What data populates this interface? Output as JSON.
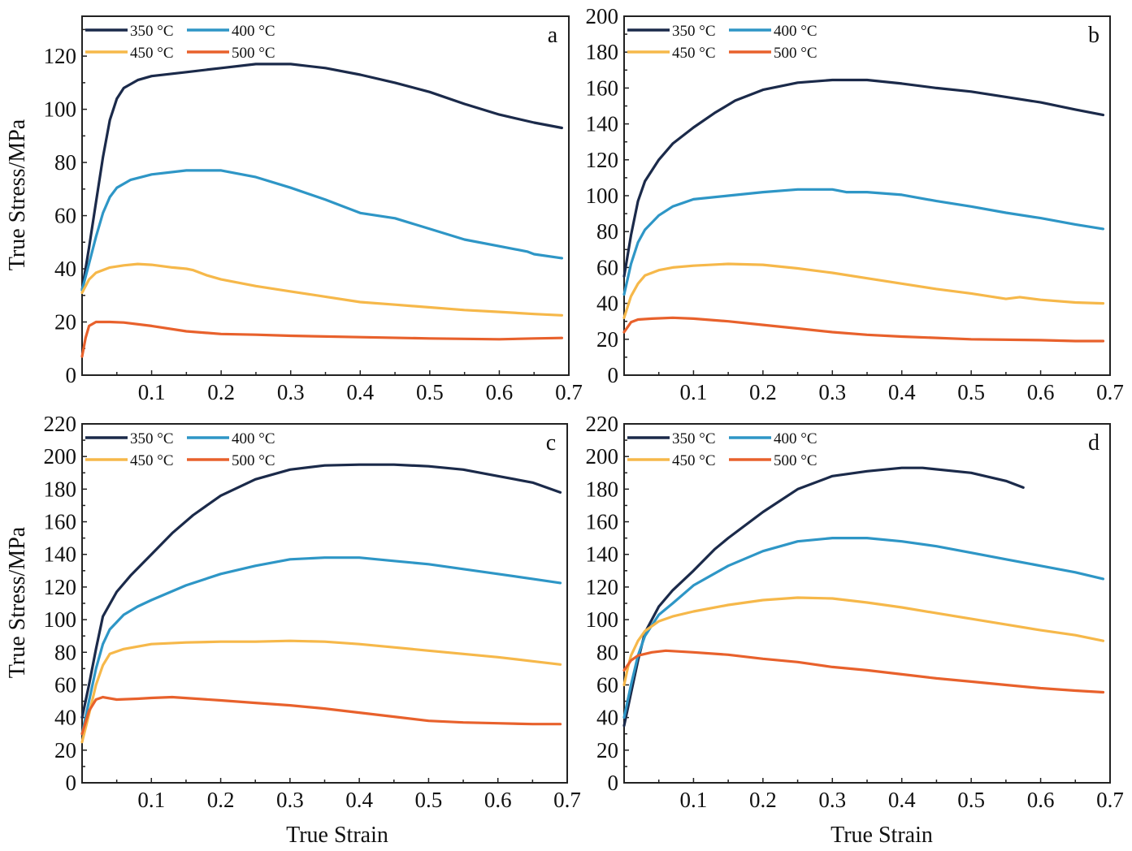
{
  "figure": {
    "x_axis_title": "True Strain",
    "y_axis_title": "True Stress/MPa"
  },
  "legend": [
    {
      "label": "350 °C",
      "color": "#1b2a4a"
    },
    {
      "label": "400 °C",
      "color": "#2e96c6"
    },
    {
      "label": "450 °C",
      "color": "#f6b84a"
    },
    {
      "label": "500 °C",
      "color": "#e8612c"
    }
  ],
  "chart_data": [
    {
      "type": "line",
      "panel": "a",
      "title": "",
      "xlabel": "",
      "ylabel": "True Stress/MPa",
      "xlim": [
        0,
        0.7
      ],
      "ylim": [
        0,
        135
      ],
      "xticks": [
        "0.1",
        "0.2",
        "0.3",
        "0.4",
        "0.5",
        "0.6",
        "0.7"
      ],
      "yticks": [
        "0",
        "20",
        "40",
        "60",
        "80",
        "100",
        "120"
      ],
      "legend_position": "top-left",
      "grid": false,
      "series": [
        {
          "name": "350 °C",
          "x": [
            0,
            0.01,
            0.02,
            0.03,
            0.04,
            0.05,
            0.06,
            0.08,
            0.1,
            0.15,
            0.2,
            0.25,
            0.3,
            0.35,
            0.4,
            0.45,
            0.5,
            0.55,
            0.6,
            0.65,
            0.69
          ],
          "y": [
            32,
            48,
            65,
            82,
            96,
            104,
            108,
            111,
            112.5,
            114,
            115.5,
            117,
            117,
            115.5,
            113,
            110,
            106.5,
            102,
            98,
            95,
            93
          ]
        },
        {
          "name": "400 °C",
          "x": [
            0,
            0.01,
            0.02,
            0.03,
            0.04,
            0.05,
            0.07,
            0.1,
            0.15,
            0.2,
            0.25,
            0.3,
            0.35,
            0.4,
            0.45,
            0.5,
            0.55,
            0.6,
            0.64,
            0.65,
            0.69
          ],
          "y": [
            32,
            42,
            52,
            61,
            67,
            70.5,
            73.5,
            75.5,
            77,
            77,
            74.5,
            70.5,
            66,
            61,
            59,
            55,
            51,
            48.5,
            46.5,
            45.5,
            44
          ]
        },
        {
          "name": "450 °C",
          "x": [
            0,
            0.01,
            0.02,
            0.04,
            0.06,
            0.08,
            0.1,
            0.13,
            0.15,
            0.16,
            0.18,
            0.2,
            0.25,
            0.3,
            0.35,
            0.4,
            0.45,
            0.5,
            0.55,
            0.6,
            0.65,
            0.69
          ],
          "y": [
            31,
            36,
            38.5,
            40.5,
            41.3,
            41.8,
            41.5,
            40.5,
            40,
            39.5,
            37.5,
            36,
            33.5,
            31.5,
            29.5,
            27.5,
            26.5,
            25.5,
            24.5,
            23.8,
            23,
            22.5
          ]
        },
        {
          "name": "500 °C",
          "x": [
            0,
            0.005,
            0.01,
            0.02,
            0.04,
            0.06,
            0.1,
            0.15,
            0.2,
            0.25,
            0.3,
            0.4,
            0.5,
            0.6,
            0.65,
            0.69
          ],
          "y": [
            7,
            14,
            18.5,
            20,
            20,
            19.8,
            18.5,
            16.5,
            15.5,
            15.2,
            14.8,
            14.3,
            13.8,
            13.5,
            13.8,
            14
          ]
        }
      ]
    },
    {
      "type": "line",
      "panel": "b",
      "title": "",
      "xlabel": "",
      "ylabel": "",
      "xlim": [
        0,
        0.7
      ],
      "ylim": [
        0,
        200
      ],
      "xticks": [
        "0.1",
        "0.2",
        "0.3",
        "0.4",
        "0.5",
        "0.6",
        "0.7"
      ],
      "yticks": [
        "0",
        "20",
        "40",
        "60",
        "80",
        "100",
        "120",
        "140",
        "160",
        "180",
        "200"
      ],
      "legend_position": "top-left",
      "grid": false,
      "series": [
        {
          "name": "350 °C",
          "x": [
            0,
            0.01,
            0.02,
            0.03,
            0.05,
            0.07,
            0.1,
            0.13,
            0.16,
            0.2,
            0.25,
            0.3,
            0.35,
            0.4,
            0.45,
            0.5,
            0.55,
            0.6,
            0.65,
            0.69
          ],
          "y": [
            55,
            78,
            97,
            108,
            120,
            129,
            138,
            146,
            153,
            159,
            163,
            164.5,
            164.5,
            162.5,
            160,
            158,
            155,
            152,
            148,
            145
          ]
        },
        {
          "name": "400 °C",
          "x": [
            0,
            0.01,
            0.02,
            0.03,
            0.05,
            0.07,
            0.1,
            0.15,
            0.2,
            0.25,
            0.3,
            0.32,
            0.35,
            0.4,
            0.45,
            0.5,
            0.55,
            0.6,
            0.65,
            0.69
          ],
          "y": [
            45,
            62,
            74,
            81,
            89,
            94,
            98,
            100,
            102,
            103.5,
            103.5,
            102,
            102,
            100.5,
            97,
            94,
            90.5,
            87.5,
            84,
            81.5
          ]
        },
        {
          "name": "450 °C",
          "x": [
            0,
            0.01,
            0.02,
            0.03,
            0.05,
            0.07,
            0.1,
            0.15,
            0.2,
            0.25,
            0.3,
            0.35,
            0.4,
            0.45,
            0.5,
            0.55,
            0.57,
            0.6,
            0.65,
            0.69
          ],
          "y": [
            32,
            44,
            51,
            55.5,
            58.5,
            60,
            61,
            62,
            61.5,
            59.5,
            57,
            54,
            51,
            48,
            45.5,
            42.5,
            43.5,
            42,
            40.5,
            40
          ]
        },
        {
          "name": "500 °C",
          "x": [
            0,
            0.01,
            0.02,
            0.04,
            0.07,
            0.1,
            0.15,
            0.2,
            0.25,
            0.3,
            0.35,
            0.4,
            0.5,
            0.6,
            0.65,
            0.69
          ],
          "y": [
            24,
            29.5,
            31,
            31.5,
            32,
            31.5,
            30,
            28,
            26,
            24,
            22.5,
            21.5,
            20,
            19.5,
            19,
            19
          ]
        }
      ]
    },
    {
      "type": "line",
      "panel": "c",
      "title": "",
      "xlabel": "True Strain",
      "ylabel": "True Stress/MPa",
      "xlim": [
        0,
        0.7
      ],
      "ylim": [
        0,
        220
      ],
      "xticks": [
        "0.1",
        "0.2",
        "0.3",
        "0.4",
        "0.5",
        "0.6",
        "0.7"
      ],
      "yticks": [
        "0",
        "20",
        "40",
        "60",
        "80",
        "100",
        "120",
        "140",
        "160",
        "180",
        "200",
        "220"
      ],
      "legend_position": "top-left",
      "grid": false,
      "series": [
        {
          "name": "350 °C",
          "x": [
            0,
            0.01,
            0.02,
            0.03,
            0.05,
            0.07,
            0.1,
            0.13,
            0.16,
            0.2,
            0.25,
            0.3,
            0.35,
            0.4,
            0.45,
            0.5,
            0.55,
            0.6,
            0.65,
            0.69
          ],
          "y": [
            40,
            60,
            82,
            102,
            117,
            127,
            140,
            153,
            164,
            176,
            186,
            192,
            194.5,
            195,
            195,
            194,
            192,
            188,
            184,
            178
          ]
        },
        {
          "name": "400 °C",
          "x": [
            0,
            0.01,
            0.02,
            0.03,
            0.04,
            0.06,
            0.08,
            0.1,
            0.15,
            0.2,
            0.25,
            0.3,
            0.35,
            0.4,
            0.45,
            0.5,
            0.55,
            0.6,
            0.65,
            0.69
          ],
          "y": [
            30,
            50,
            70,
            85,
            94,
            103,
            108,
            112,
            121,
            128,
            133,
            137,
            138,
            138,
            136,
            134,
            131,
            128,
            125,
            122.5
          ]
        },
        {
          "name": "450 °C",
          "x": [
            0,
            0.01,
            0.02,
            0.03,
            0.04,
            0.06,
            0.1,
            0.15,
            0.2,
            0.25,
            0.3,
            0.35,
            0.4,
            0.45,
            0.5,
            0.55,
            0.6,
            0.65,
            0.69
          ],
          "y": [
            25,
            42,
            60,
            72,
            79,
            82,
            85,
            86,
            86.5,
            86.5,
            87,
            86.5,
            85,
            83,
            81,
            79,
            77,
            74.5,
            72.5
          ]
        },
        {
          "name": "500 °C",
          "x": [
            0,
            0.01,
            0.02,
            0.03,
            0.05,
            0.08,
            0.1,
            0.13,
            0.2,
            0.25,
            0.3,
            0.35,
            0.4,
            0.45,
            0.5,
            0.55,
            0.6,
            0.65,
            0.69
          ],
          "y": [
            30,
            44,
            51,
            52.5,
            51,
            51.5,
            52,
            52.5,
            50.5,
            49,
            47.5,
            45.5,
            43,
            40.5,
            38,
            37,
            36.5,
            36,
            36
          ]
        }
      ]
    },
    {
      "type": "line",
      "panel": "d",
      "title": "",
      "xlabel": "True Strain",
      "ylabel": "",
      "xlim": [
        0,
        0.7
      ],
      "ylim": [
        0,
        220
      ],
      "xticks": [
        "0.1",
        "0.2",
        "0.3",
        "0.4",
        "0.5",
        "0.6",
        "0.7"
      ],
      "yticks": [
        "0",
        "20",
        "40",
        "60",
        "80",
        "100",
        "120",
        "140",
        "160",
        "180",
        "200",
        "220"
      ],
      "legend_position": "top-left",
      "grid": false,
      "series": [
        {
          "name": "350 °C",
          "x": [
            0,
            0.01,
            0.02,
            0.03,
            0.05,
            0.07,
            0.1,
            0.13,
            0.15,
            0.2,
            0.25,
            0.3,
            0.35,
            0.4,
            0.43,
            0.5,
            0.55,
            0.575
          ],
          "y": [
            35,
            55,
            75,
            92,
            108,
            118,
            130,
            143,
            150,
            166,
            180,
            188,
            191,
            193,
            193,
            190,
            185,
            181
          ]
        },
        {
          "name": "400 °C",
          "x": [
            0,
            0.01,
            0.02,
            0.03,
            0.05,
            0.07,
            0.1,
            0.15,
            0.2,
            0.25,
            0.3,
            0.35,
            0.4,
            0.45,
            0.5,
            0.55,
            0.6,
            0.65,
            0.69
          ],
          "y": [
            40,
            60,
            78,
            90,
            103,
            110,
            121,
            133,
            142,
            148,
            150,
            150,
            148,
            145,
            141,
            137,
            133,
            129,
            125
          ]
        },
        {
          "name": "450 °C",
          "x": [
            0,
            0.005,
            0.01,
            0.02,
            0.03,
            0.05,
            0.07,
            0.1,
            0.15,
            0.2,
            0.25,
            0.3,
            0.35,
            0.4,
            0.45,
            0.5,
            0.55,
            0.6,
            0.65,
            0.69
          ],
          "y": [
            60,
            70,
            78,
            87,
            93,
            99,
            102,
            105,
            109,
            112,
            113.5,
            113,
            110.5,
            107.5,
            104,
            100.5,
            97,
            93.5,
            90.5,
            87
          ]
        },
        {
          "name": "500 °C",
          "x": [
            0,
            0.01,
            0.02,
            0.04,
            0.06,
            0.1,
            0.15,
            0.2,
            0.25,
            0.3,
            0.35,
            0.4,
            0.45,
            0.5,
            0.55,
            0.6,
            0.65,
            0.69
          ],
          "y": [
            69,
            75,
            78,
            80,
            81,
            80,
            78.5,
            76,
            74,
            71,
            69,
            66.5,
            64,
            62,
            60,
            58,
            56.5,
            55.5
          ]
        }
      ]
    }
  ]
}
